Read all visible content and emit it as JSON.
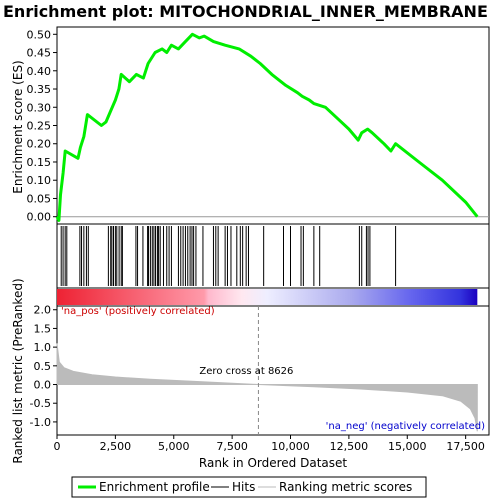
{
  "chart_data": {
    "type": "line",
    "title": "Enrichment plot: MITOCHONDRIAL_INNER_MEMBRANE",
    "xlabel": "Rank in Ordered Dataset",
    "xlim": [
      0,
      18500
    ],
    "x_ticks": [
      0,
      2500,
      5000,
      7500,
      10000,
      12500,
      15000,
      17500
    ],
    "x_tick_labels": [
      "0",
      "2,500",
      "5,000",
      "7,500",
      "10,000",
      "12,500",
      "15,000",
      "17,500"
    ],
    "enrichment": {
      "ylabel": "Enrichment score (ES)",
      "ylim": [
        -0.02,
        0.52
      ],
      "y_ticks": [
        0.0,
        0.05,
        0.1,
        0.15,
        0.2,
        0.25,
        0.3,
        0.35,
        0.4,
        0.45,
        0.5
      ],
      "y_tick_labels": [
        "0.00",
        "0.05",
        "0.10",
        "0.15",
        "0.20",
        "0.25",
        "0.30",
        "0.35",
        "0.40",
        "0.45",
        "0.50"
      ],
      "color": "#00ee00",
      "points": [
        [
          0,
          0.0
        ],
        [
          80,
          -0.01
        ],
        [
          150,
          0.06
        ],
        [
          260,
          0.12
        ],
        [
          350,
          0.18
        ],
        [
          900,
          0.16
        ],
        [
          1000,
          0.19
        ],
        [
          1150,
          0.22
        ],
        [
          1300,
          0.28
        ],
        [
          1900,
          0.25
        ],
        [
          2100,
          0.26
        ],
        [
          2300,
          0.29
        ],
        [
          2500,
          0.32
        ],
        [
          2650,
          0.35
        ],
        [
          2750,
          0.39
        ],
        [
          3100,
          0.37
        ],
        [
          3400,
          0.39
        ],
        [
          3700,
          0.38
        ],
        [
          3900,
          0.42
        ],
        [
          4200,
          0.45
        ],
        [
          4500,
          0.46
        ],
        [
          4700,
          0.45
        ],
        [
          4900,
          0.47
        ],
        [
          5200,
          0.46
        ],
        [
          5500,
          0.48
        ],
        [
          5800,
          0.5
        ],
        [
          6100,
          0.49
        ],
        [
          6300,
          0.495
        ],
        [
          6700,
          0.48
        ],
        [
          7200,
          0.47
        ],
        [
          7800,
          0.46
        ],
        [
          8300,
          0.44
        ],
        [
          8700,
          0.42
        ],
        [
          9200,
          0.39
        ],
        [
          9800,
          0.36
        ],
        [
          10300,
          0.34
        ],
        [
          10500,
          0.33
        ],
        [
          10800,
          0.32
        ],
        [
          11000,
          0.31
        ],
        [
          11500,
          0.3
        ],
        [
          12000,
          0.27
        ],
        [
          12500,
          0.24
        ],
        [
          12900,
          0.21
        ],
        [
          13050,
          0.23
        ],
        [
          13300,
          0.24
        ],
        [
          13500,
          0.23
        ],
        [
          14000,
          0.2
        ],
        [
          14300,
          0.18
        ],
        [
          14500,
          0.2
        ],
        [
          15500,
          0.15
        ],
        [
          16500,
          0.1
        ],
        [
          17500,
          0.04
        ],
        [
          18000,
          0.0
        ]
      ]
    },
    "hits": [
      180,
      260,
      350,
      420,
      980,
      1050,
      1150,
      1260,
      1340,
      2200,
      2300,
      2350,
      2420,
      2500,
      2560,
      2660,
      2750,
      2800,
      3380,
      3450,
      3680,
      3880,
      3920,
      4000,
      4080,
      4150,
      4220,
      4300,
      4350,
      4420,
      4560,
      4700,
      4800,
      4900,
      5200,
      5300,
      5400,
      5500,
      5600,
      5700,
      5780,
      5850,
      5950,
      6250,
      6700,
      6800,
      6900,
      7200,
      7300,
      7450,
      7700,
      7850,
      7950,
      8100,
      8200,
      8850,
      9700,
      10000,
      10450,
      10550,
      11000,
      11250,
      12950,
      13050,
      13250,
      13320,
      13400,
      14500
    ],
    "metric": {
      "ylabel": "Ranked list metric (PreRanked)",
      "ylim": [
        -1.35,
        2.1
      ],
      "y_ticks": [
        -1.0,
        -0.5,
        0.0,
        0.5,
        1.0,
        1.5,
        2.0
      ],
      "y_tick_labels": [
        "-1.0",
        "-0.5",
        "0.0",
        "0.5",
        "1.0",
        "1.5",
        "2.0"
      ],
      "color": "#bbbbbb",
      "points": [
        [
          0,
          1.1
        ],
        [
          100,
          0.6
        ],
        [
          300,
          0.45
        ],
        [
          700,
          0.35
        ],
        [
          1500,
          0.26
        ],
        [
          2500,
          0.2
        ],
        [
          4000,
          0.14
        ],
        [
          6000,
          0.08
        ],
        [
          8626,
          0.0
        ],
        [
          11000,
          -0.06
        ],
        [
          13000,
          -0.12
        ],
        [
          15000,
          -0.2
        ],
        [
          16500,
          -0.3
        ],
        [
          17300,
          -0.45
        ],
        [
          17700,
          -0.65
        ],
        [
          17900,
          -0.9
        ],
        [
          18000,
          -1.25
        ]
      ]
    },
    "heatmap_stops": [
      [
        0,
        "#ee2233"
      ],
      [
        0.35,
        "#ff9aaa"
      ],
      [
        0.36,
        "#ffb8cc"
      ],
      [
        0.44,
        "#ffe8f0"
      ],
      [
        0.5,
        "#eeeeff"
      ],
      [
        0.7,
        "#aaaaee"
      ],
      [
        0.84,
        "#6666ee"
      ],
      [
        0.96,
        "#3333dd"
      ],
      [
        1,
        "#1a00c0"
      ]
    ],
    "zero_cross": 8626,
    "annotations": {
      "zero_cross": "Zero cross at 8626",
      "pos": "'na_pos' (positively correlated)",
      "neg": "'na_neg' (negatively correlated)",
      "pos_color": "#cc0000",
      "neg_color": "#0000cc"
    },
    "legend": {
      "placement": "bottom",
      "entries": [
        "Enrichment profile",
        "Hits",
        "Ranking metric scores"
      ]
    }
  }
}
